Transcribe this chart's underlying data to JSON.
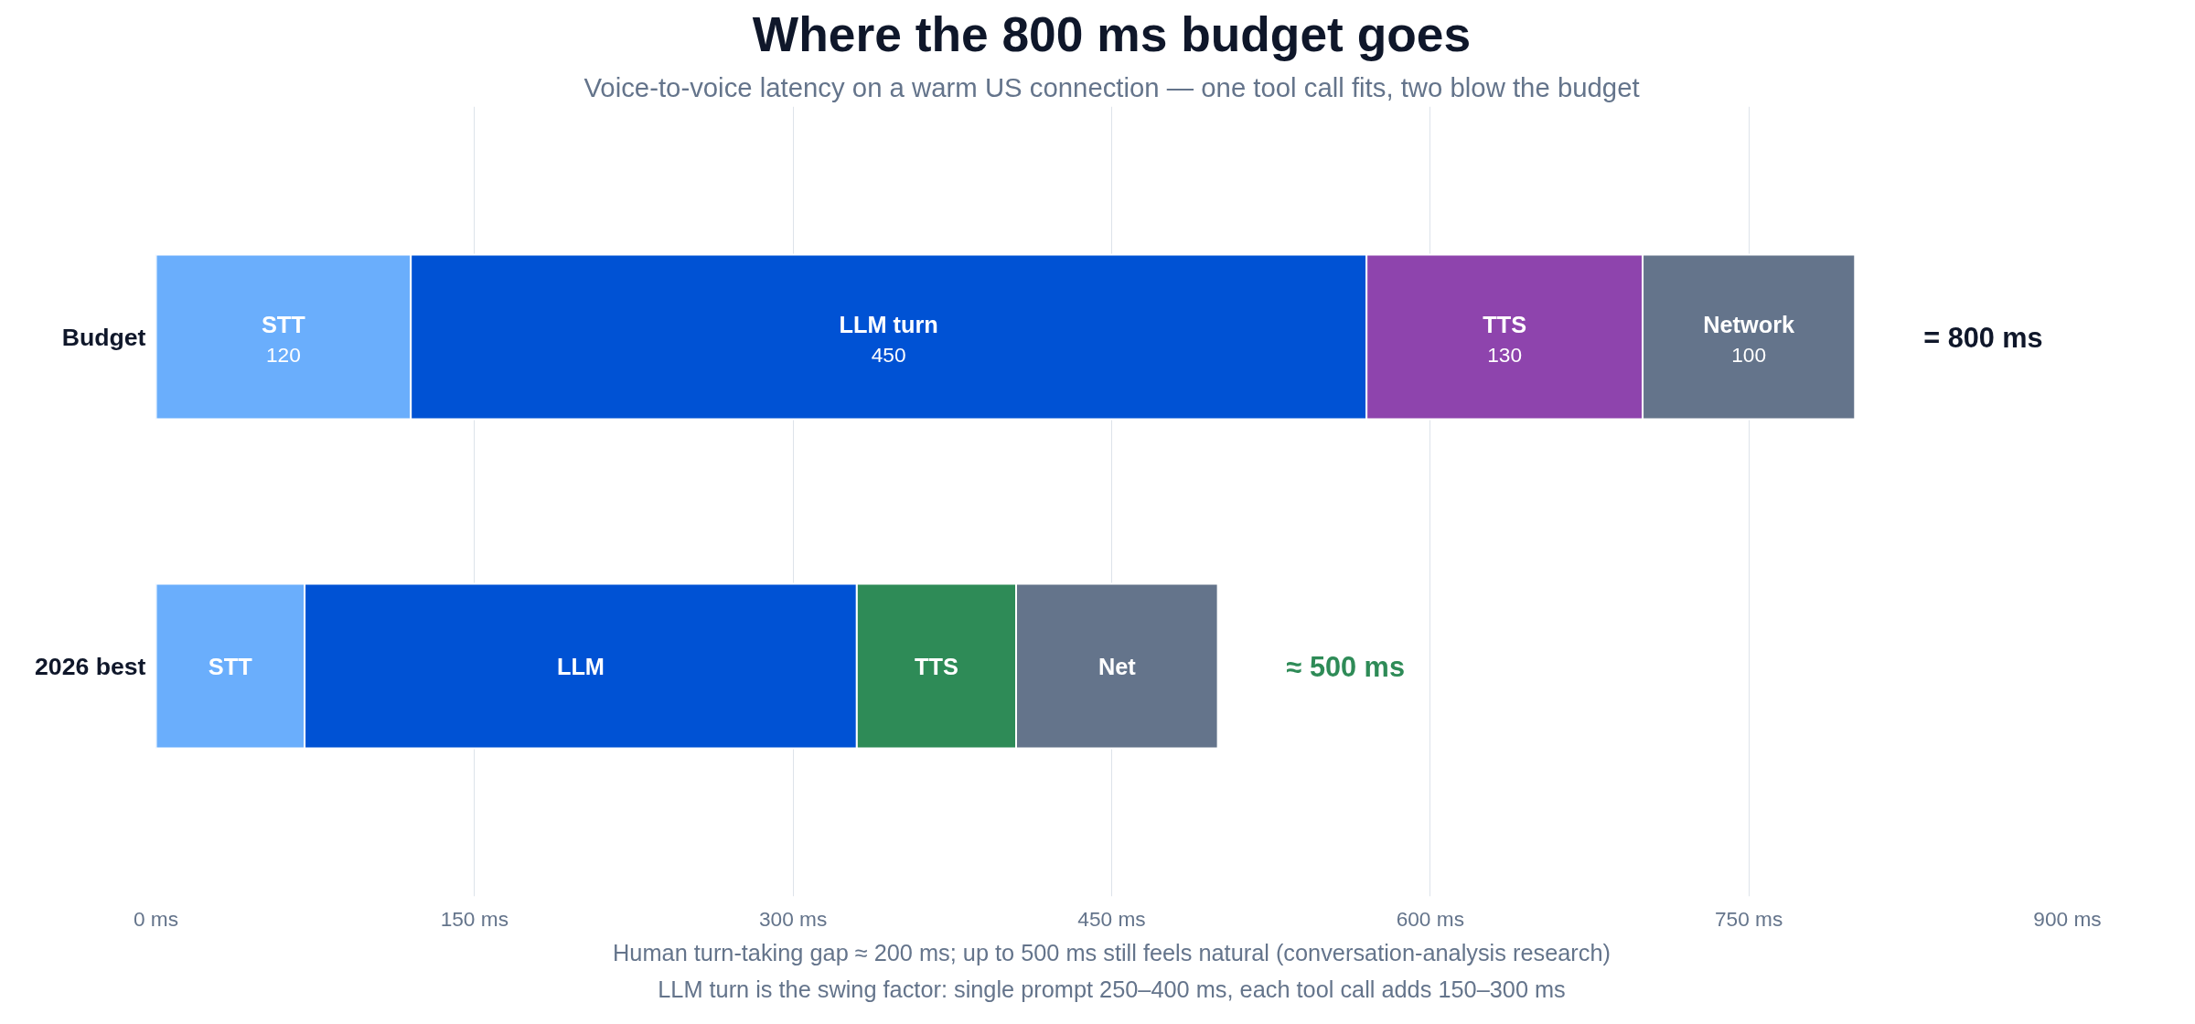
{
  "chart_data": {
    "type": "bar",
    "orientation": "horizontal",
    "stacked": true,
    "title": "Where the 800 ms budget goes",
    "subtitle": "Voice-to-voice latency on a warm US connection — one tool call fits, two blow the budget",
    "categories": [
      "Budget",
      "2026 best"
    ],
    "series": [
      {
        "colors": [
          "#6aaefc",
          "#6aaefc"
        ],
        "values": [
          120,
          70
        ],
        "value_labels": [
          "STT\n120",
          "STT"
        ]
      },
      {
        "colors": [
          "#0052d4",
          "#0052d4"
        ],
        "values": [
          450,
          260
        ],
        "value_labels": [
          "LLM turn\n450",
          "LLM"
        ]
      },
      {
        "colors": [
          "#8e44ad",
          "#2e8b57"
        ],
        "values": [
          130,
          75
        ],
        "value_labels": [
          "TTS\n130",
          "TTS"
        ]
      },
      {
        "colors": [
          "#64748b",
          "#64748b"
        ],
        "values": [
          100,
          95
        ],
        "value_labels": [
          "Network\n100",
          "Net"
        ]
      }
    ],
    "totals": [
      "= 800 ms",
      "≈ 500 ms"
    ],
    "annotations": [
      "Human turn-taking gap ≈ 200 ms; up to 500 ms still feels natural (conversation-analysis research)",
      "LLM turn is the swing factor: single prompt 250–400 ms, each tool call adds 150–300 ms"
    ],
    "xlim": [
      0,
      900
    ],
    "xticks": [
      {
        "value": 0,
        "label": "0 ms"
      },
      {
        "value": 150,
        "label": "150 ms"
      },
      {
        "value": 300,
        "label": "300 ms"
      },
      {
        "value": 450,
        "label": "450 ms"
      },
      {
        "value": 600,
        "label": "600 ms"
      },
      {
        "value": 750,
        "label": "750 ms"
      },
      {
        "value": 900,
        "label": "900 ms"
      }
    ],
    "grid": "x"
  }
}
